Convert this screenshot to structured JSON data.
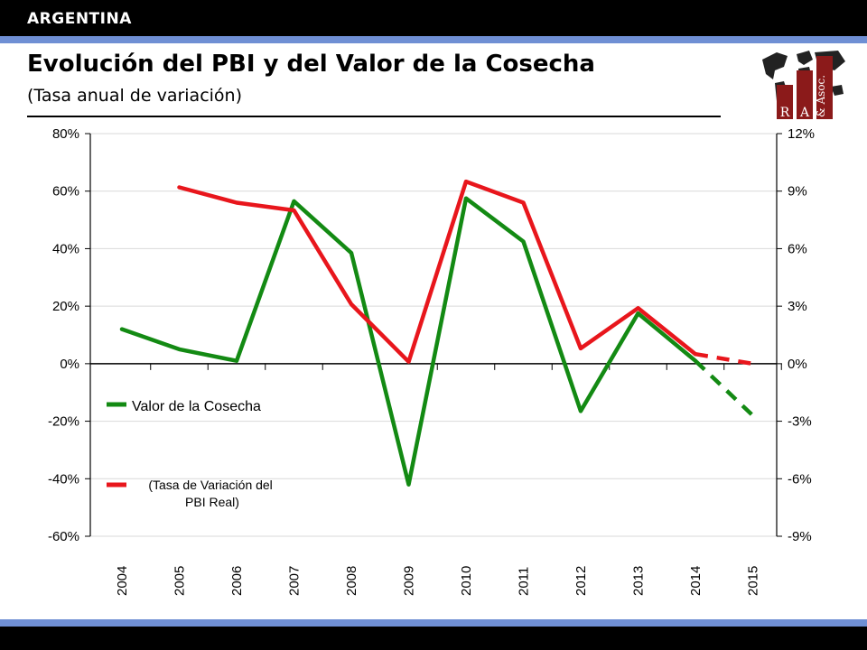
{
  "header": {
    "country": "ARGENTINA",
    "title": "Evolución del PBI y del Valor de la Cosecha",
    "subtitle": "(Tasa anual de variación)"
  },
  "logo": {
    "letters": [
      "R",
      "A",
      "& Asoc."
    ]
  },
  "colors": {
    "accent_stripe": "#6f8fd4",
    "bar": "#000000",
    "harvest_series": "#138a13",
    "gdp_series": "#e8161c",
    "logo_red": "#8b1a1a"
  },
  "chart_data": {
    "type": "line",
    "categories": [
      "2004",
      "2005",
      "2006",
      "2007",
      "2008",
      "2009",
      "2010",
      "2011",
      "2012",
      "2013",
      "2014",
      "2015"
    ],
    "y_left": {
      "range": [
        -60,
        80
      ],
      "ticks": [
        80,
        60,
        40,
        20,
        0,
        -20,
        -40,
        -60
      ],
      "tick_labels": [
        "80%",
        "60%",
        "40%",
        "20%",
        "0%",
        "-20%",
        "-40%",
        "-60%"
      ]
    },
    "y_right": {
      "range": [
        -9,
        12
      ],
      "ticks": [
        12,
        9,
        6,
        3,
        0,
        -3,
        -6,
        -9
      ],
      "tick_labels": [
        "12%",
        "9%",
        "6%",
        "3%",
        "0%",
        "-3%",
        "-6%",
        "-9%"
      ]
    },
    "grid": true,
    "legend_position": "left-bottom",
    "series": [
      {
        "name": "Valor de la Cosecha",
        "axis": "left",
        "color": "#138a13",
        "values": [
          12,
          5,
          1,
          56.5,
          38.5,
          -42,
          57.5,
          42.5,
          -16.5,
          17.5,
          1,
          -18
        ],
        "dashed_from": "2014"
      },
      {
        "name": "(Tasa  de Variación del PBI Real)",
        "axis": "right",
        "color": "#e8161c",
        "values": [
          null,
          9.2,
          8.4,
          8.0,
          3.1,
          0.1,
          9.5,
          8.4,
          0.8,
          2.9,
          0.5,
          0.0
        ],
        "dashed_from": "2014"
      }
    ]
  }
}
